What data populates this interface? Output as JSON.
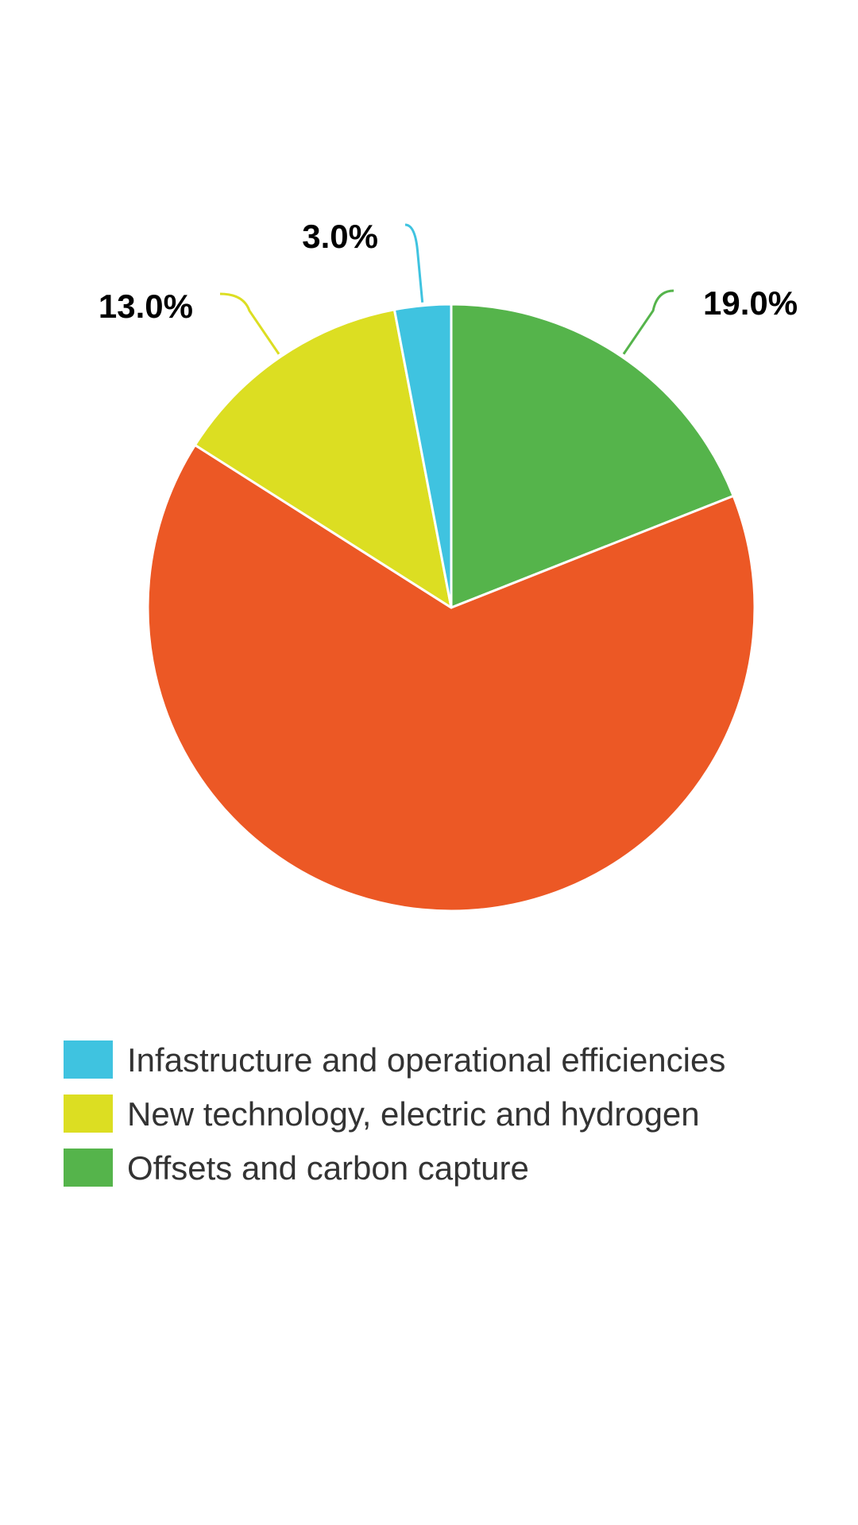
{
  "chart_data": {
    "type": "pie",
    "slices": [
      {
        "value": 19.0,
        "label": "19.0%",
        "color": "#55b44b"
      },
      {
        "value": 65.0,
        "label": "",
        "color": "#ec5825"
      },
      {
        "value": 13.0,
        "label": "13.0%",
        "color": "#dcde22"
      },
      {
        "value": 3.0,
        "label": "3.0%",
        "color": "#3fc3e0"
      }
    ],
    "legend": [
      {
        "name": "Infastructure and operational efficiencies",
        "color": "#3fc3e0"
      },
      {
        "name": "New technology, electric and hydrogen",
        "color": "#dcde22"
      },
      {
        "name": "Offsets and carbon capture",
        "color": "#55b44b"
      }
    ],
    "legend_position": "bottom-left",
    "start_angle": "top",
    "direction": "clockwise"
  }
}
